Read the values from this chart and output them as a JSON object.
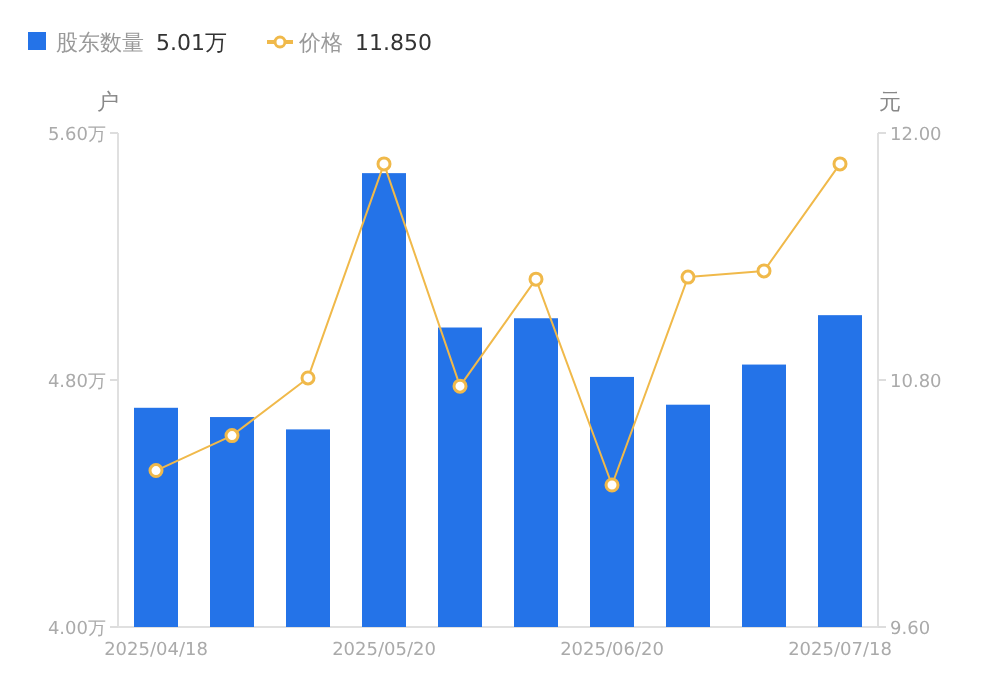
{
  "chart_data": {
    "type": "bar",
    "ylabel": "户",
    "y2label": "元",
    "legend": "top left",
    "marker": "circle",
    "grid": false,
    "categories": [
      "2025/04/18",
      null,
      null,
      "2025/05/20",
      null,
      null,
      "2025/06/20",
      null,
      null,
      "2025/07/18"
    ],
    "series": [
      {
        "name": "股东数量",
        "color": "#2473e8",
        "values": [
          4.71,
          4.68,
          4.64,
          5.47,
          4.97,
          5.0,
          4.81,
          4.72,
          4.85,
          5.01
        ]
      },
      {
        "name": "价格",
        "type": "line",
        "axis": "y2",
        "color": "#f0b94a",
        "values": [
          10.36,
          10.53,
          10.81,
          11.85,
          10.77,
          11.29,
          10.29,
          11.3,
          11.33,
          11.85
        ]
      }
    ],
    "ylim": [
      4.0,
      5.6
    ],
    "yticks": [
      {
        "value": 4.0,
        "label": "4.00万"
      },
      {
        "value": 4.8,
        "label": "4.80万"
      },
      {
        "value": 5.6,
        "label": "5.60万"
      }
    ],
    "y2lim": [
      9.6,
      12.0
    ],
    "y2ticks": [
      {
        "value": 9.6,
        "label": "9.60"
      },
      {
        "value": 10.8,
        "label": "10.80"
      },
      {
        "value": 12.0,
        "label": "12.00"
      }
    ],
    "annotations": [
      "5.01万",
      "11.850"
    ]
  }
}
